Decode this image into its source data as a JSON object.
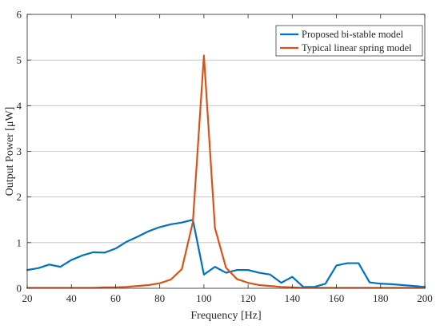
{
  "chart_data": {
    "type": "line",
    "xlabel": "Frequency [Hz]",
    "ylabel": "Output Power [μW]",
    "xlim": [
      20,
      200
    ],
    "ylim": [
      0,
      6
    ],
    "xticks": [
      "20",
      "40",
      "60",
      "80",
      "100",
      "120",
      "140",
      "160",
      "180",
      "200"
    ],
    "yticks": [
      "0",
      "1",
      "2",
      "3",
      "4",
      "5",
      "6"
    ],
    "grid": "horizontal",
    "legend_position": "top-right",
    "series": [
      {
        "name": "Proposed bi-stable model",
        "color": "#0072BD",
        "x": [
          20,
          25,
          30,
          35,
          40,
          45,
          50,
          55,
          60,
          65,
          70,
          75,
          80,
          85,
          90,
          95,
          100,
          105,
          110,
          115,
          120,
          125,
          130,
          135,
          140,
          145,
          150,
          155,
          160,
          165,
          170,
          175,
          180,
          185,
          190,
          195,
          200
        ],
        "y": [
          0.4,
          0.44,
          0.52,
          0.47,
          0.62,
          0.72,
          0.79,
          0.78,
          0.87,
          1.02,
          1.13,
          1.25,
          1.34,
          1.4,
          1.44,
          1.5,
          0.3,
          0.47,
          0.34,
          0.4,
          0.4,
          0.34,
          0.3,
          0.12,
          0.25,
          0.03,
          0.03,
          0.1,
          0.5,
          0.55,
          0.55,
          0.13,
          0.1,
          0.09,
          0.07,
          0.05,
          0.03
        ]
      },
      {
        "name": "Typical linear spring model",
        "color": "#D95319",
        "x": [
          20,
          25,
          30,
          35,
          40,
          45,
          50,
          55,
          60,
          65,
          70,
          75,
          80,
          85,
          90,
          95,
          100,
          105,
          110,
          115,
          120,
          125,
          130,
          135,
          140,
          145,
          150,
          155,
          160,
          165,
          170,
          175,
          180,
          185,
          190,
          195,
          200
        ],
        "y": [
          0.01,
          0.01,
          0.01,
          0.01,
          0.01,
          0.01,
          0.01,
          0.02,
          0.02,
          0.03,
          0.05,
          0.07,
          0.11,
          0.19,
          0.42,
          1.45,
          5.1,
          1.32,
          0.45,
          0.2,
          0.12,
          0.07,
          0.05,
          0.03,
          0.02,
          0.01,
          0.01,
          0.01,
          0.01,
          0.01,
          0.01,
          0.01,
          0.01,
          0.01,
          0.01,
          0.01,
          0.01
        ]
      }
    ]
  }
}
